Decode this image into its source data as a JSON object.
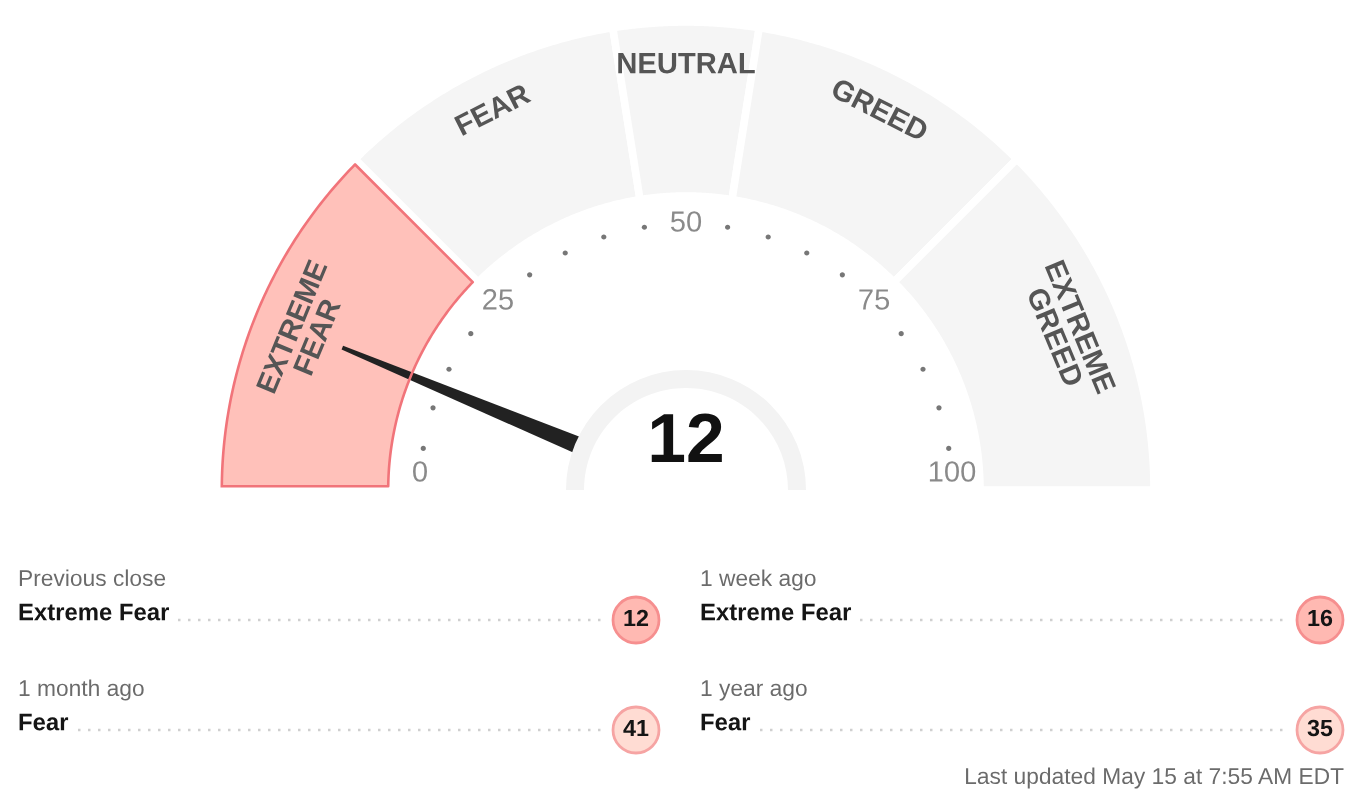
{
  "chart_data": [
    {
      "type": "donut",
      "categories": [
        "EXTREME\nFEAR",
        "FEAR",
        "NEUTRAL",
        "GREED",
        "EXTREME\nGREED"
      ],
      "values": [
        25,
        20,
        10,
        20,
        25
      ],
      "colors": [
        "#ffc1ba",
        "#f5f5f5",
        "#f5f5f5",
        "#f5f5f5",
        "#f5f5f5"
      ],
      "needle": "EXTREME\nFEAR",
      "annotations": [
        "12",
        "0",
        "25",
        "50",
        "75",
        "100"
      ]
    },
    {
      "type": "other",
      "values": [
        12,
        16,
        41,
        35
      ],
      "colors": [
        "#ffb9b2",
        "#ffb9b2",
        "#ffdcd3",
        "#ffdcd3"
      ],
      "data_labels": true,
      "annotations": [
        "Previous close",
        "Extreme Fear",
        "1 week ago",
        "Extreme Fear",
        "1 month ago",
        "Fear",
        "1 year ago",
        "Fear",
        "Last updated May 15 at 7:55 AM EDT"
      ]
    }
  ]
}
